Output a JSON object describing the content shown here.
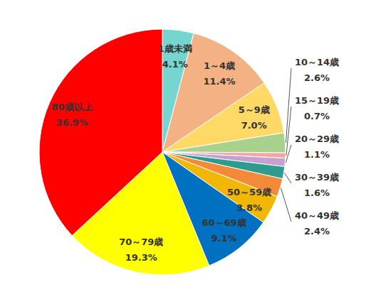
{
  "chart_data": {
    "type": "pie",
    "categories": [
      "1歳未満",
      "1～4歳",
      "5～9歳",
      "10～14歳",
      "15～19歳",
      "20～29歳",
      "30～39歳",
      "40～49歳",
      "50～59歳",
      "60～69歳",
      "70～79歳",
      "80歳以上"
    ],
    "values": [
      4.1,
      11.4,
      7.0,
      2.6,
      0.7,
      1.1,
      1.6,
      2.4,
      3.8,
      9.1,
      19.3,
      36.9
    ],
    "value_labels": [
      "4.1%",
      "11.4%",
      "7.0%",
      "2.6%",
      "0.7%",
      "1.1%",
      "1.6%",
      "2.4%",
      "3.8%",
      "9.1%",
      "19.3%",
      "36.9%"
    ],
    "colors": [
      "#76D6CF",
      "#F4B183",
      "#FFD966",
      "#A9D18E",
      "#F4A6A0",
      "#C6A0D0",
      "#2E9B8F",
      "#F28A3A",
      "#F2B705",
      "#0070C0",
      "#FFFF00",
      "#FF0000"
    ],
    "data_labels": true
  }
}
